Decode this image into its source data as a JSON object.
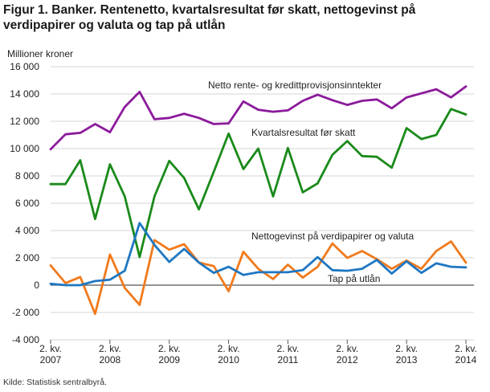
{
  "chart_data": {
    "type": "line",
    "title": "Figur 1. Banker. Rentenetto, kvartalsresultat før skatt, nettogevinst på verdipapirer og valuta og tap på utlån",
    "ylabel": "Millioner kroner",
    "xlabel": "",
    "ylim": [
      -4000,
      16000
    ],
    "yticks": [
      -4000,
      -2000,
      0,
      2000,
      4000,
      6000,
      8000,
      10000,
      12000,
      14000,
      16000
    ],
    "ytick_labels": [
      "-4 000",
      "-2 000",
      "0",
      "2 000",
      "4 000",
      "6 000",
      "8 000",
      "10 000",
      "12 000",
      "14 000",
      "16 000"
    ],
    "xtick_labels": [
      {
        "line1": "2. kv.",
        "line2": "2007"
      },
      {
        "line1": "2. kv.",
        "line2": "2008"
      },
      {
        "line1": "2. kv.",
        "line2": "2009"
      },
      {
        "line1": "2. kv.",
        "line2": "2010"
      },
      {
        "line1": "2. kv.",
        "line2": "2011"
      },
      {
        "line1": "2. kv.",
        "line2": "2012"
      },
      {
        "line1": "2. kv.",
        "line2": "2013"
      },
      {
        "line1": "2. kv.",
        "line2": "2014"
      }
    ],
    "categories": [
      "2007K2",
      "2007K3",
      "2007K4",
      "2008K1",
      "2008K2",
      "2008K3",
      "2008K4",
      "2009K1",
      "2009K2",
      "2009K3",
      "2009K4",
      "2010K1",
      "2010K2",
      "2010K3",
      "2010K4",
      "2011K1",
      "2011K2",
      "2011K3",
      "2011K4",
      "2012K1",
      "2012K2",
      "2012K3",
      "2012K4",
      "2013K1",
      "2013K2",
      "2013K3",
      "2013K4",
      "2014K1",
      "2014K2"
    ],
    "grid": true,
    "series": [
      {
        "name": "Netto rente- og kredittprovisjonsinntekter",
        "color": "#8b1a9b",
        "values": [
          9950,
          11050,
          11150,
          11800,
          11200,
          13050,
          14150,
          12150,
          12250,
          12550,
          12250,
          11800,
          11850,
          13450,
          12850,
          12700,
          12800,
          13500,
          13950,
          13550,
          13200,
          13500,
          13600,
          12950,
          13750,
          14050,
          14350,
          13750,
          14550
        ]
      },
      {
        "name": "Kvartalsresultat før skatt",
        "color": "#1a8a1a",
        "values": [
          7400,
          7400,
          9150,
          4850,
          8850,
          6500,
          2050,
          6500,
          9100,
          7850,
          5550,
          8300,
          11100,
          8500,
          10000,
          6500,
          10050,
          6800,
          7450,
          9550,
          10550,
          9450,
          9400,
          8600,
          11500,
          10700,
          11000,
          12900,
          12500
        ]
      },
      {
        "name": "Nettogevinst på verdipapirer og valuta",
        "color": "#f07a1c",
        "values": [
          1450,
          150,
          600,
          -2100,
          2250,
          -200,
          -1450,
          3300,
          2600,
          3000,
          1650,
          1400,
          -450,
          2450,
          1200,
          450,
          1500,
          550,
          1350,
          3050,
          2000,
          2500,
          1900,
          1200,
          1800,
          1200,
          2500,
          3200,
          1650
        ]
      },
      {
        "name": "Tap på utlån",
        "color": "#1f77c2",
        "values": [
          100,
          0,
          0,
          300,
          400,
          1050,
          4550,
          2950,
          1700,
          2650,
          1650,
          900,
          1350,
          750,
          950,
          950,
          950,
          1100,
          2050,
          1100,
          1050,
          1200,
          1850,
          850,
          1750,
          900,
          1600,
          1350,
          1300
        ]
      }
    ],
    "annotations": [
      "Netto rente- og kredittprovisjonsinntekter",
      "Kvartalsresultat før skatt",
      "Nettogevinst på verdipapirer og valuta",
      "Tap på utlån"
    ]
  },
  "source": "Kilde: Statistisk sentralbyrå."
}
